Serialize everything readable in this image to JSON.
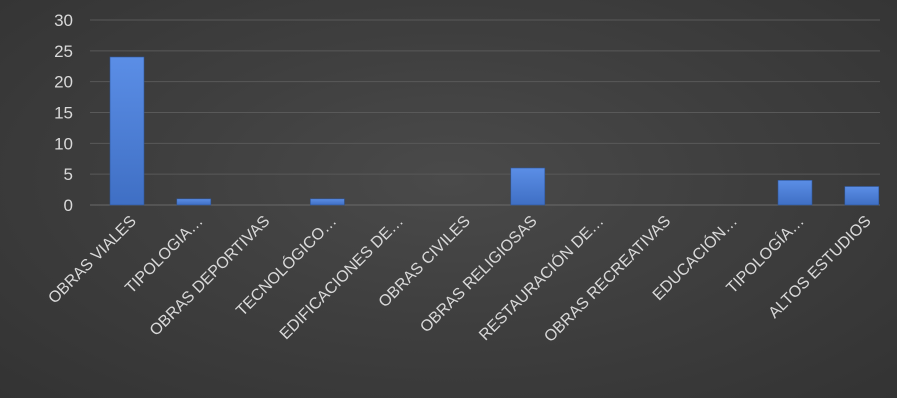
{
  "chart_data": {
    "type": "bar",
    "categories": [
      "OBRAS VIALES",
      "TIPOLOGIA…",
      "OBRAS DEPORTIVAS",
      "TECNOLÓGICO…",
      "EDIFICACIONES DE…",
      "OBRAS CIVILES",
      "OBRAS RELIGIOSAS",
      "RESTAURACIÓN DE…",
      "OBRAS RECREATIVAS",
      "EDUCACIÓN…",
      "TIPOLOGÍA…",
      "ALTOS ESTUDIOS"
    ],
    "values": [
      24,
      1,
      0,
      1,
      0,
      0,
      6,
      0,
      0,
      0,
      4,
      3
    ],
    "ylim": [
      0,
      30
    ],
    "yticks": [
      "0",
      "5",
      "10",
      "15",
      "20",
      "25",
      "30"
    ],
    "grid": true,
    "legend": "none",
    "colors": {
      "bar": "#4472c4",
      "bar_light": "#5b8ee6",
      "grid": "#595959",
      "text": "#d9d9d9"
    }
  }
}
